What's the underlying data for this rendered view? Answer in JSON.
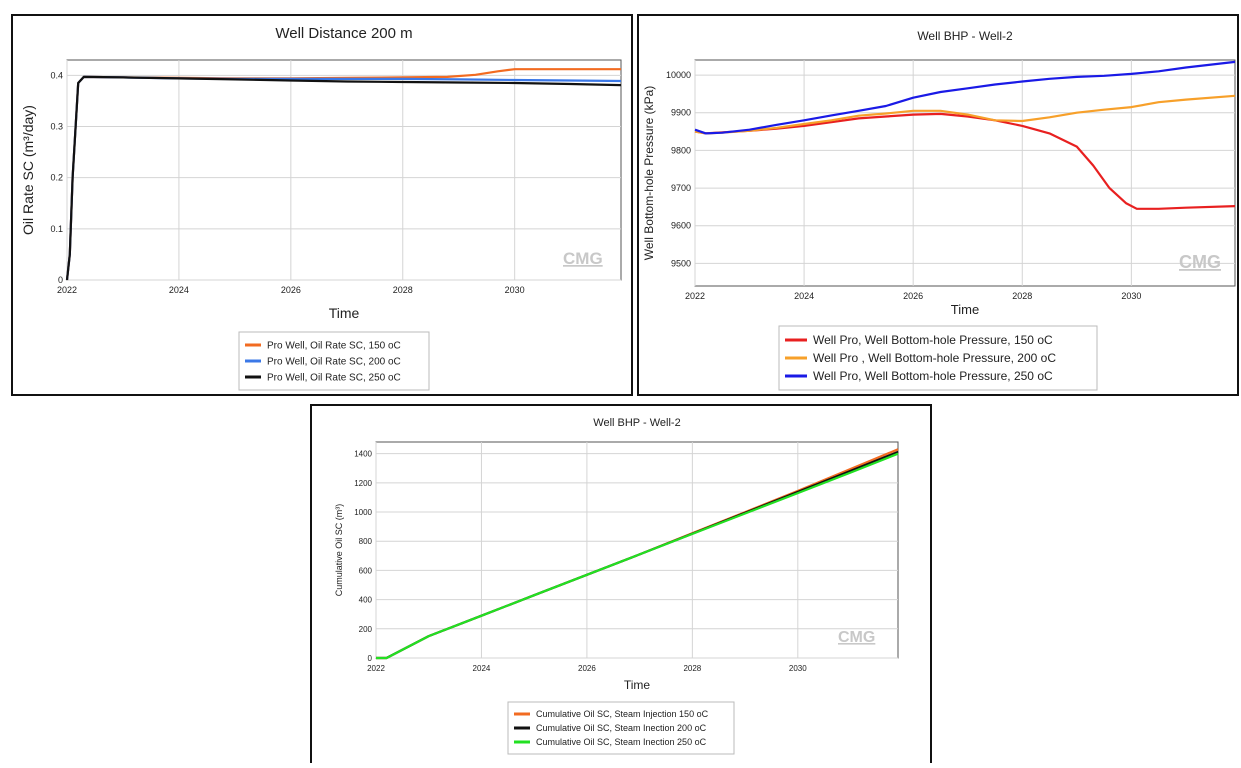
{
  "watermark": "CMG",
  "chart_data": [
    {
      "type": "line",
      "title": "Well Distance 200 m",
      "xlabel": "Time",
      "ylabel": "Oil Rate SC (m³/day)",
      "xlim": [
        2022,
        2031.9
      ],
      "ylim": [
        0,
        0.43
      ],
      "xticks": [
        "2022",
        "2024",
        "2026",
        "2028",
        "2030"
      ],
      "yticks": [
        "0",
        "0.1",
        "0.2",
        "0.3",
        "0.4"
      ],
      "grid": true,
      "legend_position": "bottom",
      "series": [
        {
          "name": "Pro Well, Oil Rate SC, 150 oC",
          "color": "#f26b21",
          "x": [
            2022.0,
            2022.05,
            2022.1,
            2022.2,
            2022.3,
            2023,
            2024,
            2025,
            2026,
            2027,
            2028,
            2028.8,
            2029.3,
            2029.7,
            2030.0,
            2031,
            2031.9
          ],
          "y": [
            0,
            0.05,
            0.2,
            0.385,
            0.397,
            0.396,
            0.395,
            0.394,
            0.394,
            0.395,
            0.396,
            0.397,
            0.401,
            0.408,
            0.412,
            0.412,
            0.412
          ]
        },
        {
          "name": "Pro Well, Oil Rate SC, 200 oC",
          "color": "#3b78e7",
          "x": [
            2022.0,
            2022.05,
            2022.1,
            2022.2,
            2022.3,
            2023,
            2024,
            2025,
            2026,
            2027,
            2028,
            2029,
            2030,
            2031,
            2031.9
          ],
          "y": [
            0,
            0.05,
            0.2,
            0.385,
            0.397,
            0.396,
            0.394,
            0.393,
            0.393,
            0.393,
            0.393,
            0.392,
            0.391,
            0.39,
            0.389
          ]
        },
        {
          "name": "Pro Well, Oil Rate SC, 250 oC",
          "color": "#111111",
          "x": [
            2022.0,
            2022.05,
            2022.1,
            2022.2,
            2022.3,
            2023,
            2024,
            2025,
            2026,
            2027,
            2028,
            2029,
            2030,
            2031,
            2031.9
          ],
          "y": [
            0,
            0.05,
            0.2,
            0.385,
            0.397,
            0.396,
            0.394,
            0.392,
            0.39,
            0.388,
            0.387,
            0.386,
            0.385,
            0.383,
            0.381
          ]
        }
      ]
    },
    {
      "type": "line",
      "title": "Well BHP - Well-2",
      "xlabel": "Time",
      "ylabel": "Well Bottom-hole Pressure (kPa)",
      "xlim": [
        2022,
        2031.9
      ],
      "ylim": [
        9440,
        10040
      ],
      "xticks": [
        "2022",
        "2024",
        "2026",
        "2028",
        "2030"
      ],
      "yticks": [
        "9500",
        "9600",
        "9700",
        "9800",
        "9900",
        "10000"
      ],
      "grid": true,
      "legend_position": "bottom",
      "series": [
        {
          "name": "Well Pro, Well Bottom-hole Pressure, 150 oC",
          "color": "#e82020",
          "x": [
            2022.0,
            2022.2,
            2022.5,
            2023,
            2023.5,
            2024,
            2024.5,
            2025,
            2025.5,
            2026,
            2026.5,
            2027,
            2027.5,
            2028,
            2028.5,
            2029,
            2029.3,
            2029.6,
            2029.9,
            2030.1,
            2030.5,
            2031,
            2031.9
          ],
          "y": [
            9850,
            9845,
            9848,
            9852,
            9858,
            9865,
            9875,
            9885,
            9890,
            9895,
            9897,
            9890,
            9880,
            9865,
            9845,
            9810,
            9760,
            9700,
            9660,
            9645,
            9645,
            9648,
            9652
          ]
        },
        {
          "name": "Well Pro , Well Bottom-hole Pressure, 200 oC",
          "color": "#f7a02a",
          "x": [
            2022.0,
            2022.2,
            2022.5,
            2023,
            2023.5,
            2024,
            2024.5,
            2025,
            2025.5,
            2026,
            2026.5,
            2027,
            2027.5,
            2028,
            2028.5,
            2029,
            2029.5,
            2030,
            2030.5,
            2031,
            2031.9
          ],
          "y": [
            9850,
            9845,
            9847,
            9852,
            9860,
            9870,
            9880,
            9892,
            9898,
            9905,
            9905,
            9895,
            9880,
            9878,
            9888,
            9900,
            9908,
            9915,
            9928,
            9935,
            9945
          ]
        },
        {
          "name": "Well Pro, Well Bottom-hole Pressure, 250 oC",
          "color": "#1a1ae6",
          "x": [
            2022.0,
            2022.2,
            2022.5,
            2023,
            2023.5,
            2024,
            2024.5,
            2025,
            2025.5,
            2026,
            2026.5,
            2027,
            2027.5,
            2028,
            2028.5,
            2029,
            2029.5,
            2030,
            2030.5,
            2031,
            2031.9
          ],
          "y": [
            9855,
            9845,
            9847,
            9855,
            9868,
            9880,
            9893,
            9905,
            9918,
            9940,
            9955,
            9965,
            9975,
            9983,
            9990,
            9995,
            9998,
            10003,
            10010,
            10020,
            10035
          ]
        }
      ]
    },
    {
      "type": "line",
      "title": "Well BHP - Well-2",
      "xlabel": "Time",
      "ylabel": "Cumulative Oil SC (m³)",
      "xlim": [
        2022,
        2031.9
      ],
      "ylim": [
        0,
        1480
      ],
      "xticks": [
        "2022",
        "2024",
        "2026",
        "2028",
        "2030"
      ],
      "yticks": [
        "0",
        "200",
        "400",
        "600",
        "800",
        "1000",
        "1200",
        "1400"
      ],
      "grid": true,
      "legend_position": "bottom",
      "series": [
        {
          "name": "Cumulative Oil SC, Steam Injection 150 oC",
          "color": "#f26b21",
          "x": [
            2022.0,
            2022.2,
            2023,
            2024,
            2025,
            2026,
            2027,
            2028,
            2029,
            2030,
            2031,
            2031.9
          ],
          "y": [
            0,
            0,
            150,
            290,
            430,
            570,
            710,
            855,
            1000,
            1145,
            1295,
            1430
          ]
        },
        {
          "name": "Cumulative Oil SC, Steam Inection 200 oC",
          "color": "#111111",
          "x": [
            2022.0,
            2022.2,
            2023,
            2024,
            2025,
            2026,
            2027,
            2028,
            2029,
            2030,
            2031,
            2031.9
          ],
          "y": [
            0,
            0,
            150,
            290,
            430,
            570,
            710,
            852,
            995,
            1138,
            1282,
            1412
          ]
        },
        {
          "name": "Cumulative Oil SC, Steam Inection 250 oC",
          "color": "#22e022",
          "x": [
            2022.0,
            2022.2,
            2023,
            2024,
            2025,
            2026,
            2027,
            2028,
            2029,
            2030,
            2031,
            2031.9
          ],
          "y": [
            0,
            0,
            150,
            290,
            430,
            570,
            710,
            850,
            990,
            1130,
            1270,
            1400
          ]
        }
      ]
    }
  ]
}
